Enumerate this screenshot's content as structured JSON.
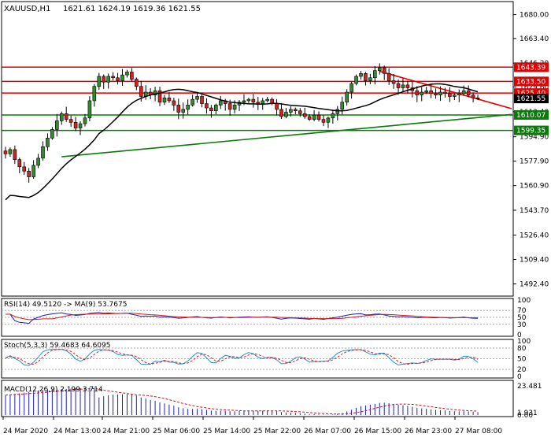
{
  "header": {
    "symbol": "XAUUSD,H1",
    "ohlc": "1621.61 1624.19 1619.36 1621.55"
  },
  "colors": {
    "bull": "#2e8b2e",
    "bear": "#d42020",
    "ma": "#000000",
    "resistance": "#e00000",
    "support": "#0a7a0a",
    "rsi": "#1e1eb4",
    "rsi_ma": "#c81e1e",
    "stoch_main": "#1e90c8",
    "stoch_signal": "#d81e1e",
    "macd_hist": "#2020b0",
    "macd_signal": "#d01010"
  },
  "chart_data": {
    "type": "candlestick",
    "main": {
      "ylim": [
        1485,
        1688
      ],
      "y_ticks": [
        "1680.00",
        "1663.40",
        "1646.20",
        "1629.60",
        "1612.40",
        "1594.90",
        "1577.90",
        "1560.90",
        "1543.70",
        "1526.40",
        "1509.40",
        "1492.40"
      ],
      "current_price": "1621.55",
      "horizontal_levels": [
        {
          "label": "1643.39",
          "value": 1643.39,
          "kind": "resistance"
        },
        {
          "label": "1633.50",
          "value": 1633.5,
          "kind": "resistance"
        },
        {
          "label": "1625.40",
          "value": 1625.4,
          "kind": "resistance"
        },
        {
          "label": "1610.07",
          "value": 1610.07,
          "kind": "support"
        },
        {
          "label": "1599.35",
          "value": 1599.35,
          "kind": "support"
        }
      ],
      "trendlines": [
        {
          "kind": "resistance",
          "from": {
            "bar": 80,
            "value": 1640.5
          },
          "to": {
            "bar": 107,
            "value": 1618
          }
        },
        {
          "kind": "support",
          "from": {
            "bar": 12,
            "value": 1581
          },
          "to": {
            "bar": 107,
            "value": 1608.5
          }
        }
      ],
      "close": [
        1583,
        1586,
        1579,
        1574,
        1571,
        1567,
        1575,
        1580,
        1588,
        1594,
        1600,
        1606,
        1611,
        1607,
        1605,
        1601,
        1604,
        1608,
        1620,
        1630,
        1637,
        1633,
        1637,
        1636,
        1634,
        1638,
        1640,
        1635,
        1630,
        1623,
        1626,
        1624,
        1627,
        1619,
        1622,
        1620,
        1617,
        1612,
        1614,
        1617,
        1621,
        1623,
        1618,
        1615,
        1613,
        1617,
        1620,
        1618,
        1614,
        1617,
        1619,
        1620,
        1621,
        1619,
        1618,
        1620,
        1621,
        1618,
        1614,
        1609,
        1612,
        1614,
        1613,
        1611,
        1609,
        1607,
        1610,
        1607,
        1605,
        1608,
        1611,
        1614,
        1619,
        1626,
        1632,
        1637,
        1639,
        1634,
        1636,
        1641,
        1643,
        1639,
        1634,
        1632,
        1629,
        1631,
        1629,
        1627,
        1624,
        1626,
        1627,
        1625,
        1624,
        1626,
        1625,
        1623,
        1624,
        1625,
        1627,
        1624,
        1622,
        1621.55
      ],
      "ma_period": 20
    },
    "rsi": {
      "label": "RSI(14) 49.5120 -> MA(9) 53.7675",
      "ylim": [
        0,
        100
      ],
      "ticks": [
        "100",
        "70",
        "50",
        "30",
        "0"
      ],
      "levels": [
        70,
        50,
        30
      ]
    },
    "stochastic": {
      "label": "Stoch(5,3,3) 59.4683 64.6095",
      "ylim": [
        0,
        100
      ],
      "ticks": [
        "100",
        "80",
        "50",
        "20",
        "0"
      ],
      "levels": [
        80,
        50,
        20
      ]
    },
    "macd": {
      "label": "MACD(12,26,9) 2.199 3.714",
      "ylim": [
        0,
        26
      ],
      "ticks": [
        "23.481",
        "1.931",
        "0.00"
      ]
    },
    "x_labels": [
      "24 Mar 2020",
      "24 Mar 13:00",
      "24 Mar 21:00",
      "25 Mar 06:00",
      "25 Mar 14:00",
      "25 Mar 22:00",
      "26 Mar 07:00",
      "26 Mar 15:00",
      "26 Mar 23:00",
      "27 Mar 08:00"
    ]
  }
}
